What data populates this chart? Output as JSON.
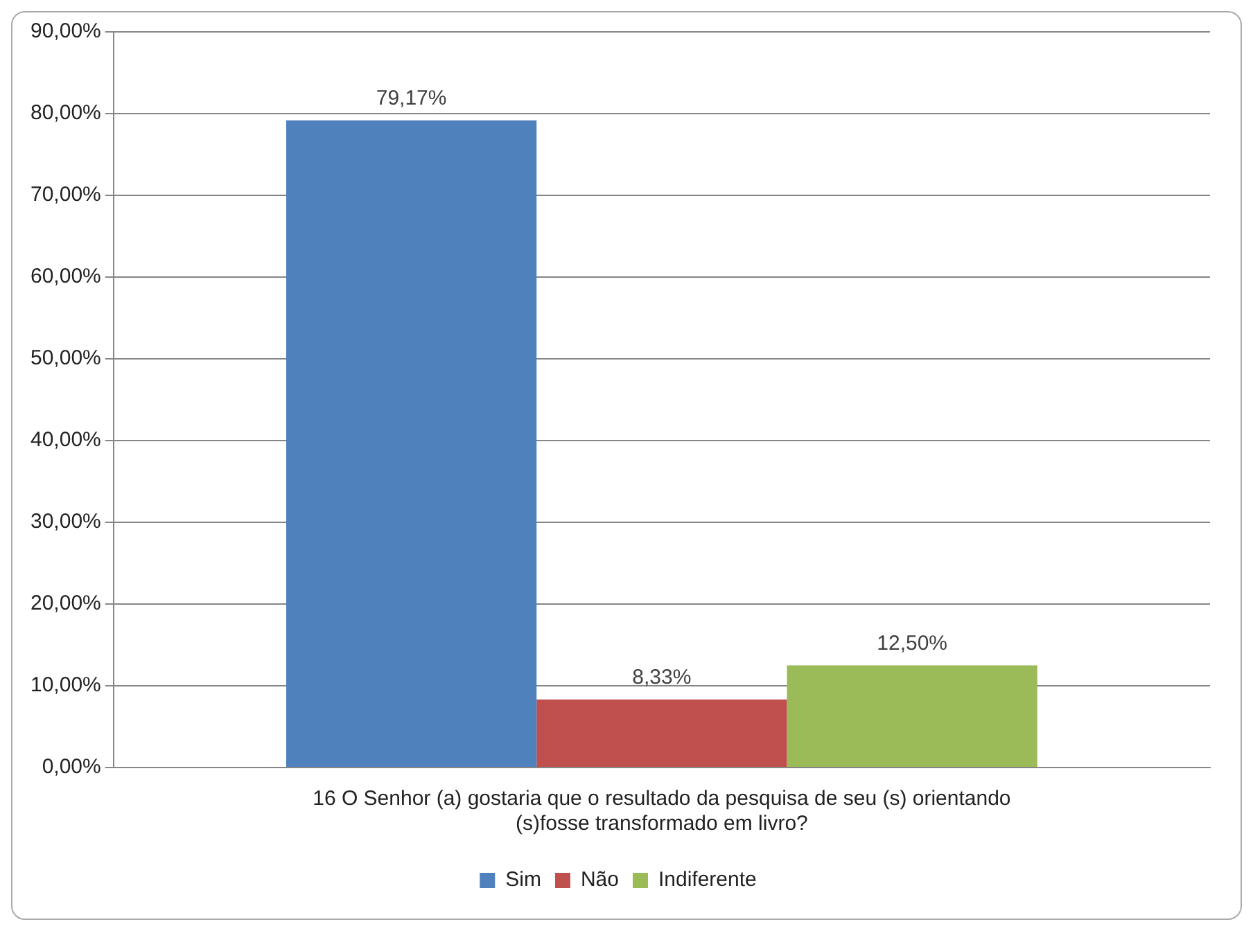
{
  "chart_data": {
    "type": "bar",
    "categories": [
      "16 O Senhor (a) gostaria que o resultado da pesquisa de seu (s) orientando (s)fosse transformado em livro?"
    ],
    "series": [
      {
        "name": "Sim",
        "color": "#4f81bd",
        "values": [
          79.17
        ],
        "value_labels": [
          "79,17%"
        ]
      },
      {
        "name": "Não",
        "color": "#c0504d",
        "values": [
          8.33
        ],
        "value_labels": [
          "8,33%"
        ]
      },
      {
        "name": "Indiferente",
        "color": "#9bbb59",
        "values": [
          12.5
        ],
        "value_labels": [
          "12,50%"
        ]
      }
    ],
    "ylim": [
      0,
      90
    ],
    "yticks": [
      {
        "value": 0,
        "label": "0,00%"
      },
      {
        "value": 10,
        "label": "10,00%"
      },
      {
        "value": 20,
        "label": "20,00%"
      },
      {
        "value": 30,
        "label": "30,00%"
      },
      {
        "value": 40,
        "label": "40,00%"
      },
      {
        "value": 50,
        "label": "50,00%"
      },
      {
        "value": 60,
        "label": "60,00%"
      },
      {
        "value": 70,
        "label": "70,00%"
      },
      {
        "value": 80,
        "label": "80,00%"
      },
      {
        "value": 90,
        "label": "90,00%"
      }
    ],
    "grid": "y",
    "legend": "bottom"
  }
}
